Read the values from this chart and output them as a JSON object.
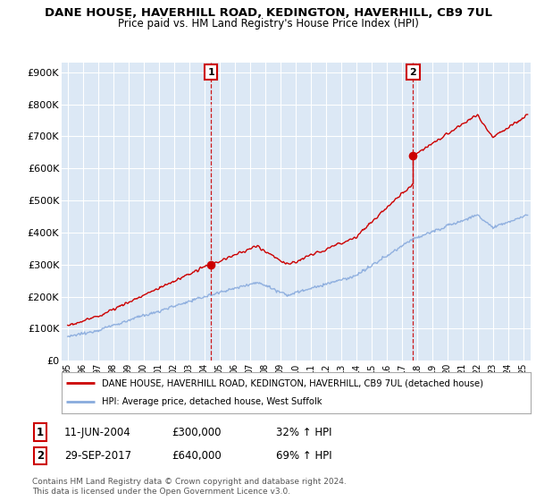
{
  "title": "DANE HOUSE, HAVERHILL ROAD, KEDINGTON, HAVERHILL, CB9 7UL",
  "subtitle": "Price paid vs. HM Land Registry's House Price Index (HPI)",
  "ytick_labels": [
    "£0",
    "£100K",
    "£200K",
    "£300K",
    "£400K",
    "£500K",
    "£600K",
    "£700K",
    "£800K",
    "£900K"
  ],
  "ytick_values": [
    0,
    100000,
    200000,
    300000,
    400000,
    500000,
    600000,
    700000,
    800000,
    900000
  ],
  "ylim": [
    0,
    930000
  ],
  "xlim_start": 1994.6,
  "xlim_end": 2025.5,
  "xtick_years": [
    1995,
    1996,
    1997,
    1998,
    1999,
    2000,
    2001,
    2002,
    2003,
    2004,
    2005,
    2006,
    2007,
    2008,
    2009,
    2010,
    2011,
    2012,
    2013,
    2014,
    2015,
    2016,
    2017,
    2018,
    2019,
    2020,
    2021,
    2022,
    2023,
    2024,
    2025
  ],
  "sale1_year": 2004.44,
  "sale1_price": 300000,
  "sale1_date": "11-JUN-2004",
  "sale1_pct": "32%",
  "sale2_year": 2017.75,
  "sale2_price": 640000,
  "sale2_date": "29-SEP-2017",
  "sale2_pct": "69%",
  "legend_red": "DANE HOUSE, HAVERHILL ROAD, KEDINGTON, HAVERHILL, CB9 7UL (detached house)",
  "legend_blue": "HPI: Average price, detached house, West Suffolk",
  "footer1": "Contains HM Land Registry data © Crown copyright and database right 2024.",
  "footer2": "This data is licensed under the Open Government Licence v3.0.",
  "red_color": "#cc0000",
  "blue_color": "#88aadd",
  "shade_color": "#dce8f5",
  "bg_color": "#dce8f5",
  "fig_bg": "#ffffff",
  "grid_color": "#ffffff"
}
